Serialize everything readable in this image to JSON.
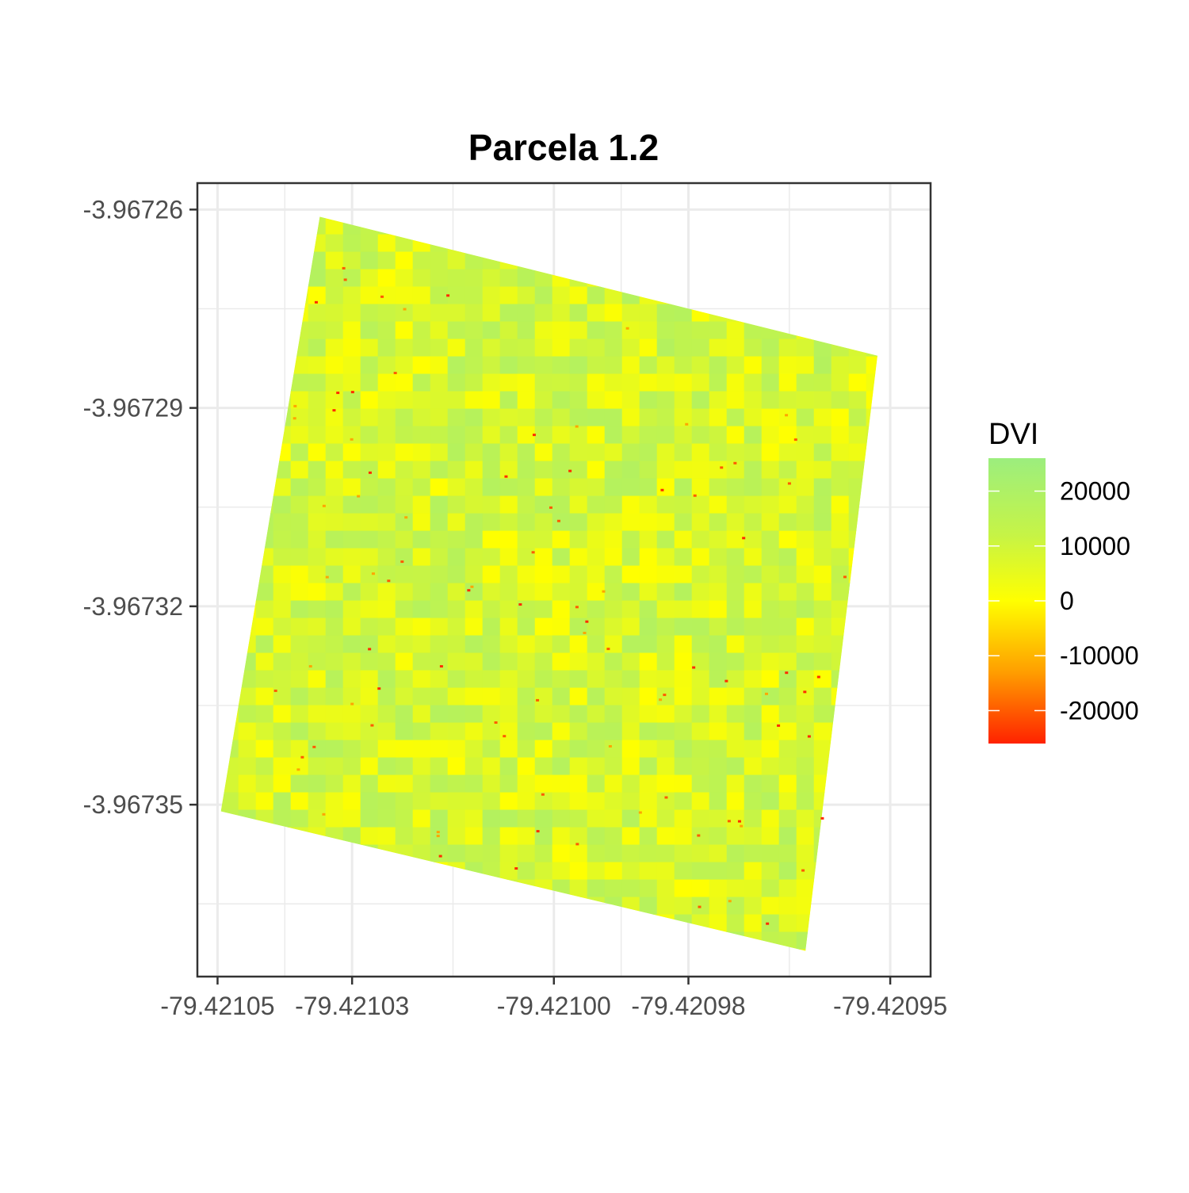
{
  "chart_data": {
    "type": "heatmap",
    "title": "Parcela 1.2",
    "xlabel": "",
    "ylabel": "",
    "x_ticks": [
      "-79.42105",
      "-79.42103",
      "-79.42100",
      "-79.42098",
      "-79.42095"
    ],
    "y_ticks": [
      "-3.96726",
      "-3.96729",
      "-3.96732",
      "-3.96735"
    ],
    "xlim": [
      -79.421053,
      -79.420944
    ],
    "ylim": [
      -3.967376,
      -3.967256
    ],
    "grid": true,
    "raster_corners": {
      "top_left": [
        -79.4210348,
        -3.9672611
      ],
      "top_right": [
        -79.4209519,
        -3.9672821
      ],
      "bottom_right": [
        -79.4209626,
        -3.9673721
      ],
      "bottom_left": [
        -79.4210495,
        -3.967351
      ]
    },
    "legend": {
      "title": "DVI",
      "position": "right",
      "range": [
        -26000,
        26000
      ],
      "ticks": [
        {
          "value": 20000,
          "label": "20000"
        },
        {
          "value": 10000,
          "label": "10000"
        },
        {
          "value": 0,
          "label": "0"
        },
        {
          "value": -10000,
          "label": "-10000"
        },
        {
          "value": -20000,
          "label": "-20000"
        }
      ],
      "color_stops": [
        {
          "value": 26000,
          "color": "#9cee7e"
        },
        {
          "value": 12000,
          "color": "#c6f446"
        },
        {
          "value": 0,
          "color": "#ffff00"
        },
        {
          "value": -13000,
          "color": "#ff9e00"
        },
        {
          "value": -26000,
          "color": "#ff2200"
        }
      ]
    },
    "value_distribution": {
      "typical_min": 0,
      "typical_max": 18000,
      "outlier_values": [
        -25000,
        -20000,
        -12000
      ]
    }
  }
}
